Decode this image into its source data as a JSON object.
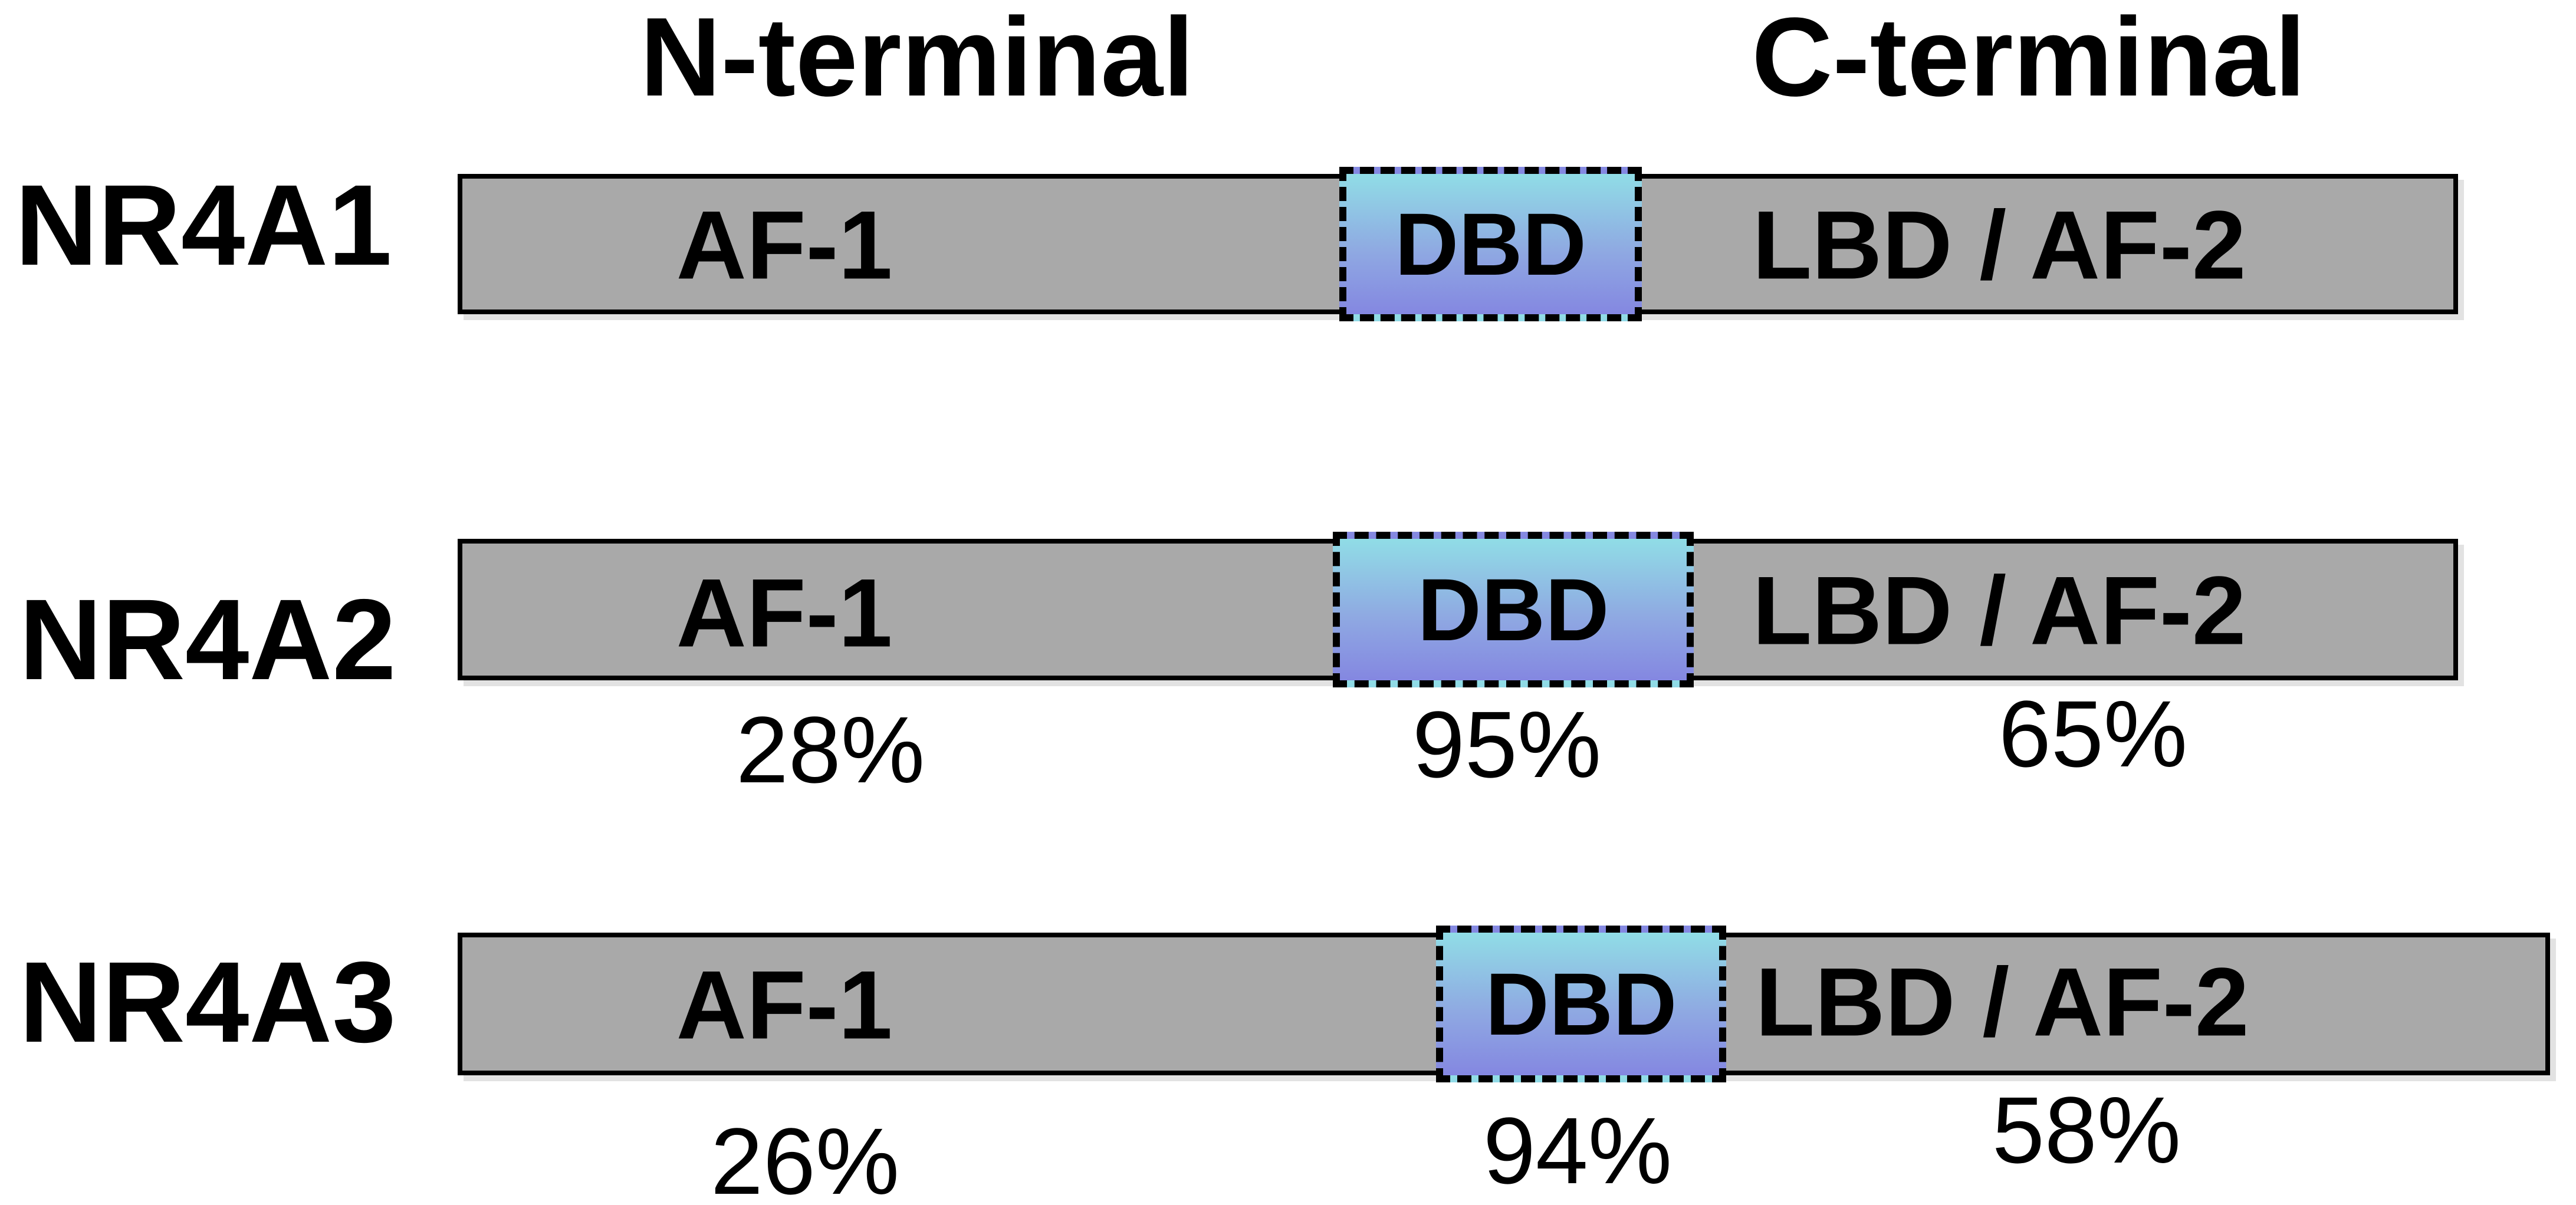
{
  "figure": {
    "headers": {
      "left": "N-terminal",
      "right": "C-terminal"
    },
    "colors": {
      "background": "#ffffff",
      "bar_fill": "#a9a9a9",
      "bar_border": "#000000",
      "dbd_top": "#90dde6",
      "dbd_mid": "#8fa9e2",
      "dbd_bottom": "#8487e1"
    },
    "rows": [
      {
        "label": "NR4A1",
        "af1": "AF-1",
        "dbd": "DBD",
        "lbd": "LBD / AF-2"
      },
      {
        "label": "NR4A2",
        "af1": "AF-1",
        "dbd": "DBD",
        "lbd": "LBD / AF-2",
        "pct_af1": "28%",
        "pct_dbd": "95%",
        "pct_lbd": "65%"
      },
      {
        "label": "NR4A3",
        "af1": "AF-1",
        "dbd": "DBD",
        "lbd": "LBD / AF-2",
        "pct_af1": "26%",
        "pct_dbd": "94%",
        "pct_lbd": "58%"
      }
    ]
  }
}
